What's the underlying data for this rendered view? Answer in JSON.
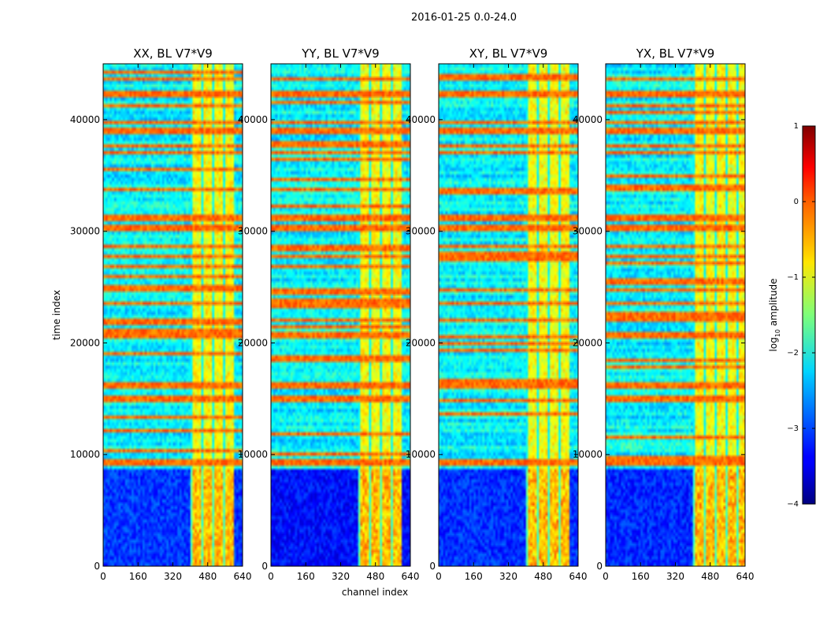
{
  "figure": {
    "suptitle": "2016-01-25 0.0-24.0"
  },
  "chart_data": {
    "type": "heatmap",
    "xlabel": "channel index",
    "ylabel": "time index",
    "xlim": [
      0,
      640
    ],
    "ylim": [
      0,
      45000
    ],
    "xticks": [
      "0",
      "160",
      "320",
      "480",
      "640"
    ],
    "xtick_values": [
      0,
      160,
      320,
      480,
      640
    ],
    "yticks": [
      "0",
      "10000",
      "20000",
      "30000",
      "40000"
    ],
    "ytick_values": [
      0,
      10000,
      20000,
      30000,
      40000
    ],
    "panels": [
      {
        "title": "XX, BL V7*V9",
        "dense_band_start": 400,
        "dense_band_end": 600,
        "low_block_end": 8800,
        "quiet": 0.0
      },
      {
        "title": "YY, BL V7*V9",
        "dense_band_start": 400,
        "dense_band_end": 600,
        "low_block_end": 8800,
        "quiet": 0.55
      },
      {
        "title": "XY, BL V7*V9",
        "dense_band_start": 400,
        "dense_band_end": 600,
        "low_block_end": 8800,
        "quiet": 0.1
      },
      {
        "title": "YX, BL V7*V9",
        "dense_band_start": 400,
        "dense_band_end": 640,
        "low_block_end": 8800,
        "quiet": 0.2
      }
    ],
    "colorbar": {
      "label": "log10 amplitude",
      "label_base": "log",
      "label_sub": "10",
      "label_rest": " amplitude",
      "range": [
        -4,
        1
      ],
      "ticks": [
        1,
        0,
        -1,
        -2,
        -3,
        -4
      ],
      "tick_labels": [
        "1",
        "0",
        "−1",
        "−2",
        "−3",
        "−4"
      ],
      "colormap": "jet"
    },
    "horizontal_bright_rows": [
      9000,
      9300,
      14600,
      15900,
      16300,
      20300,
      22000,
      23300,
      24700,
      27600,
      28500,
      29900,
      30300,
      31000,
      31300,
      33700,
      36900,
      37400,
      38700,
      39100,
      39500,
      41900,
      42300,
      43500
    ]
  },
  "colors": {
    "background": "#ffffff",
    "axes": "#000000"
  }
}
